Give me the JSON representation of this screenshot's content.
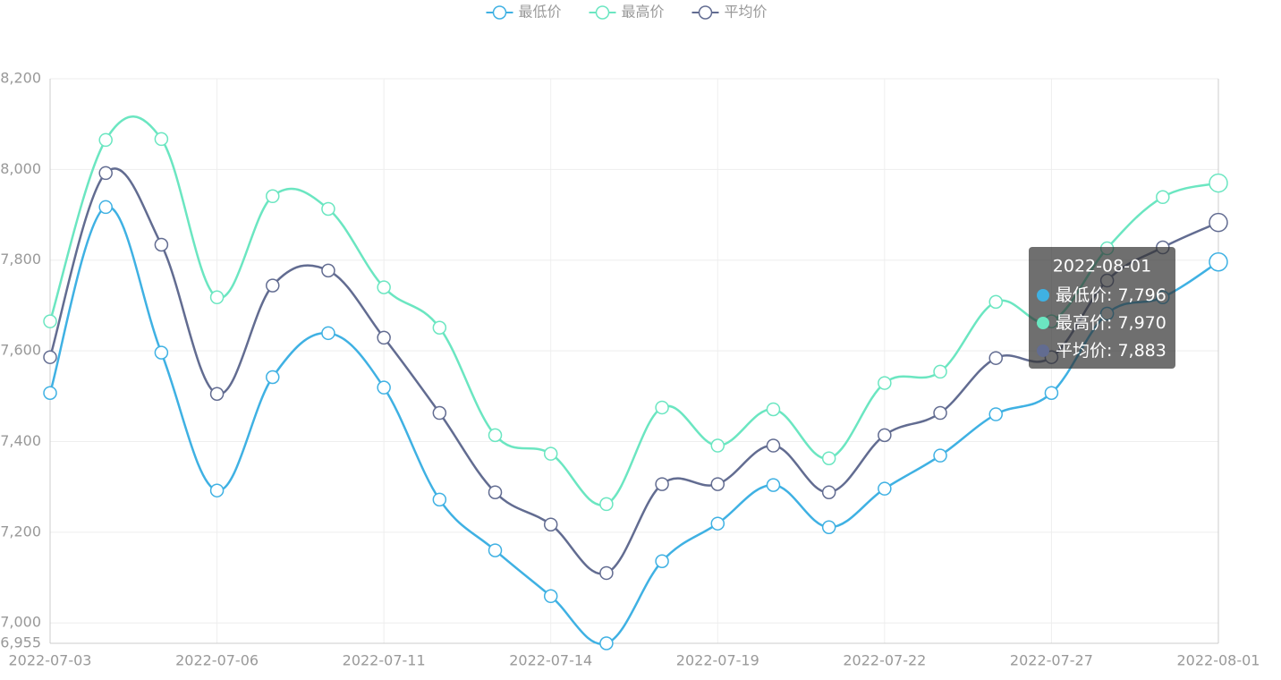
{
  "chart_data": {
    "type": "line",
    "categories": [
      "2022-07-03",
      null,
      null,
      "2022-07-06",
      null,
      null,
      "2022-07-11",
      null,
      null,
      "2022-07-14",
      null,
      null,
      "2022-07-19",
      null,
      null,
      "2022-07-22",
      null,
      null,
      "2022-07-27",
      null,
      null,
      "2022-08-01"
    ],
    "series": [
      {
        "name": "最低价",
        "color": "#3fb1e3",
        "values": [
          7507,
          7917,
          7596,
          7292,
          7542,
          7639,
          7519,
          7272,
          7160,
          7059,
          6955,
          7136,
          7219,
          7304,
          7211,
          7296,
          7369,
          7460,
          7507,
          7682,
          7718,
          7796
        ]
      },
      {
        "name": "最高价",
        "color": "#6be6c1",
        "values": [
          7665,
          8065,
          8067,
          7718,
          7941,
          7913,
          7740,
          7651,
          7414,
          7373,
          7262,
          7475,
          7391,
          7471,
          7363,
          7529,
          7554,
          7708,
          7665,
          7826,
          7939,
          7970
        ]
      },
      {
        "name": "平均价",
        "color": "#626c91",
        "values": [
          7586,
          7992,
          7834,
          7505,
          7744,
          7777,
          7629,
          7463,
          7288,
          7217,
          7110,
          7306,
          7306,
          7391,
          7288,
          7414,
          7463,
          7584,
          7586,
          7755,
          7828,
          7883
        ]
      }
    ],
    "ylim": [
      6955,
      8200
    ],
    "yticks": [
      {
        "value": 6955,
        "label": "6,955"
      },
      {
        "value": 7000,
        "label": "7,000"
      },
      {
        "value": 7200,
        "label": "7,200"
      },
      {
        "value": 7400,
        "label": "7,400"
      },
      {
        "value": 7600,
        "label": "7,600"
      },
      {
        "value": 7800,
        "label": "7,800"
      },
      {
        "value": 8000,
        "label": "8,000"
      },
      {
        "value": 8200,
        "label": "8,200"
      }
    ],
    "grid": true,
    "smooth": true,
    "legend": "top",
    "tooltip": {
      "title": "2022-08-01",
      "items": [
        {
          "name": "最低价",
          "label": "7,796"
        },
        {
          "name": "最高价",
          "label": "7,970"
        },
        {
          "name": "平均价",
          "label": "7,883"
        }
      ]
    }
  }
}
